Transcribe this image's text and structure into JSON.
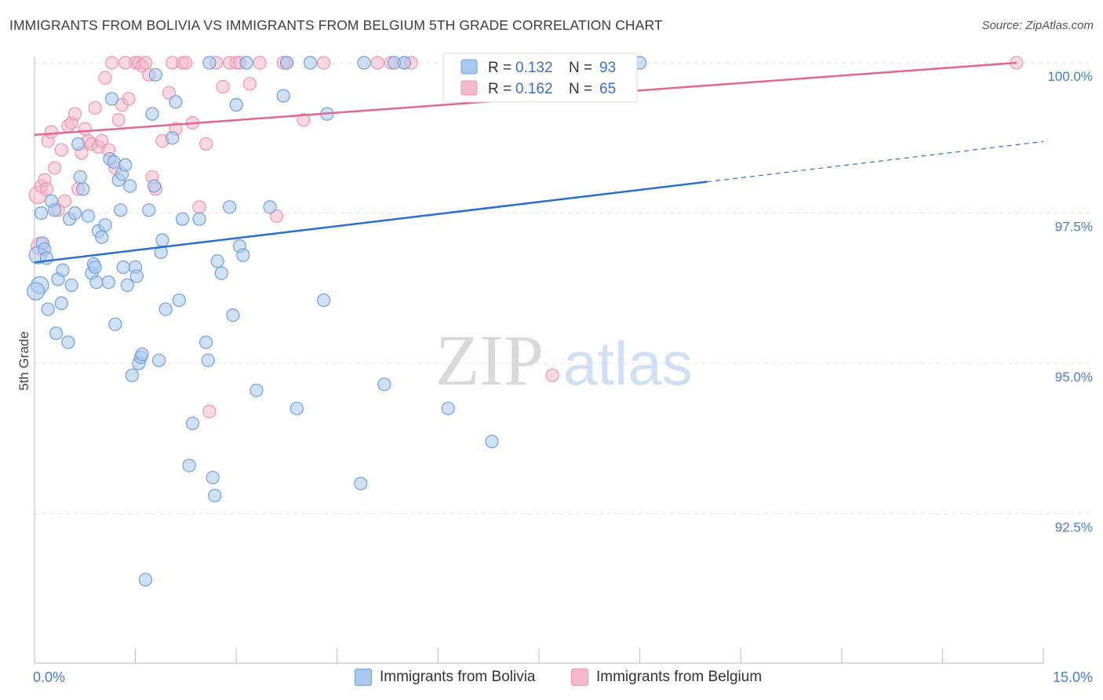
{
  "title": "IMMIGRANTS FROM BOLIVIA VS IMMIGRANTS FROM BELGIUM 5TH GRADE CORRELATION CHART",
  "source": "Source: ZipAtlas.com",
  "watermark": {
    "zip": "ZIP",
    "atlas": "atlas"
  },
  "colors": {
    "bolivia_fill": "#a9c8ee",
    "bolivia_stroke": "#6f9fe0",
    "bolivia_line": "#2a6fcf",
    "belgium_fill": "#f6b9cb",
    "belgium_stroke": "#ee93b0",
    "belgium_line": "#e4678f",
    "tick_text": "#4a7cc9",
    "grid": "#e3e3e3"
  },
  "legend": {
    "rows": [
      {
        "r_label": "R =",
        "r_value": "0.132",
        "n_label": "N =",
        "n_value": "93"
      },
      {
        "r_label": "R =",
        "r_value": "0.162",
        "n_label": "N =",
        "n_value": "65"
      }
    ]
  },
  "chart_data": {
    "type": "scatter",
    "title": "IMMIGRANTS FROM BOLIVIA VS IMMIGRANTS FROM BELGIUM 5TH GRADE CORRELATION CHART",
    "xlabel": "",
    "ylabel": "5th Grade",
    "xlim": [
      0,
      15
    ],
    "ylim": [
      90.5,
      100.3
    ],
    "x_tick_labels": [
      "0.0%",
      "15.0%"
    ],
    "y_ticks": [
      {
        "value": 100.0,
        "label": "100.0%"
      },
      {
        "value": 97.5,
        "label": "97.5%"
      },
      {
        "value": 95.0,
        "label": "95.0%"
      },
      {
        "value": 92.5,
        "label": "92.5%"
      }
    ],
    "series": [
      {
        "name": "Immigrants from Bolivia",
        "r": 0.132,
        "n": 93,
        "trend": {
          "x0": 0.0,
          "y0": 96.68,
          "x1": 10.0,
          "y1": 98.02,
          "dash_to_x": 15.0,
          "dash_to_y": 98.69
        },
        "points": [
          [
            0.05,
            96.8
          ],
          [
            0.08,
            96.3
          ],
          [
            0.1,
            97.5
          ],
          [
            0.12,
            97.0
          ],
          [
            0.15,
            96.9
          ],
          [
            0.18,
            96.75
          ],
          [
            0.2,
            95.9
          ],
          [
            0.25,
            97.7
          ],
          [
            0.3,
            97.55
          ],
          [
            0.32,
            95.5
          ],
          [
            0.35,
            96.4
          ],
          [
            0.4,
            96.0
          ],
          [
            0.42,
            96.55
          ],
          [
            0.5,
            95.35
          ],
          [
            0.52,
            97.4
          ],
          [
            0.55,
            96.3
          ],
          [
            0.6,
            97.5
          ],
          [
            0.65,
            98.65
          ],
          [
            0.68,
            98.1
          ],
          [
            0.72,
            97.9
          ],
          [
            0.8,
            97.45
          ],
          [
            0.85,
            96.5
          ],
          [
            0.88,
            96.65
          ],
          [
            0.9,
            96.6
          ],
          [
            0.92,
            96.35
          ],
          [
            0.95,
            97.2
          ],
          [
            1.0,
            97.1
          ],
          [
            1.05,
            97.3
          ],
          [
            1.1,
            96.35
          ],
          [
            1.12,
            98.4
          ],
          [
            1.15,
            99.4
          ],
          [
            1.18,
            98.35
          ],
          [
            1.2,
            95.65
          ],
          [
            1.25,
            98.05
          ],
          [
            1.28,
            97.55
          ],
          [
            1.3,
            98.15
          ],
          [
            1.32,
            96.6
          ],
          [
            1.35,
            98.3
          ],
          [
            1.38,
            96.3
          ],
          [
            1.42,
            97.95
          ],
          [
            1.45,
            94.8
          ],
          [
            1.5,
            96.6
          ],
          [
            1.52,
            96.45
          ],
          [
            1.55,
            95.0
          ],
          [
            1.58,
            95.1
          ],
          [
            1.6,
            95.15
          ],
          [
            1.65,
            91.4
          ],
          [
            1.7,
            97.55
          ],
          [
            1.75,
            99.15
          ],
          [
            1.78,
            97.95
          ],
          [
            1.8,
            99.8
          ],
          [
            1.85,
            95.05
          ],
          [
            1.88,
            96.85
          ],
          [
            1.9,
            97.05
          ],
          [
            1.95,
            95.9
          ],
          [
            2.05,
            98.75
          ],
          [
            2.1,
            99.35
          ],
          [
            2.15,
            96.05
          ],
          [
            2.2,
            97.4
          ],
          [
            2.35,
            94.0
          ],
          [
            2.3,
            93.3
          ],
          [
            2.45,
            97.4
          ],
          [
            2.55,
            95.35
          ],
          [
            2.58,
            95.05
          ],
          [
            2.6,
            100.0
          ],
          [
            2.65,
            93.1
          ],
          [
            2.68,
            92.8
          ],
          [
            2.72,
            96.7
          ],
          [
            2.78,
            96.5
          ],
          [
            2.9,
            97.6
          ],
          [
            2.95,
            95.8
          ],
          [
            3.0,
            99.3
          ],
          [
            3.05,
            96.95
          ],
          [
            3.1,
            96.8
          ],
          [
            3.15,
            100.0
          ],
          [
            3.3,
            94.55
          ],
          [
            3.5,
            97.6
          ],
          [
            3.7,
            99.45
          ],
          [
            3.75,
            100.0
          ],
          [
            3.9,
            94.25
          ],
          [
            4.1,
            100.0
          ],
          [
            4.35,
            99.15
          ],
          [
            4.3,
            96.05
          ],
          [
            4.85,
            93.0
          ],
          [
            4.9,
            100.0
          ],
          [
            5.2,
            94.65
          ],
          [
            5.35,
            100.0
          ],
          [
            5.5,
            100.0
          ],
          [
            6.15,
            94.25
          ],
          [
            6.8,
            93.7
          ],
          [
            7.0,
            100.0
          ],
          [
            9.0,
            100.0
          ],
          [
            0.02,
            96.2
          ]
        ]
      },
      {
        "name": "Immigrants from Belgium",
        "r": 0.162,
        "n": 65,
        "trend": {
          "x0": 0.0,
          "y0": 98.8,
          "x1": 14.6,
          "y1": 100.0
        },
        "points": [
          [
            0.05,
            97.8
          ],
          [
            0.08,
            96.95
          ],
          [
            0.1,
            97.95
          ],
          [
            0.15,
            98.05
          ],
          [
            0.18,
            97.9
          ],
          [
            0.2,
            98.7
          ],
          [
            0.25,
            98.85
          ],
          [
            0.3,
            98.25
          ],
          [
            0.35,
            97.55
          ],
          [
            0.4,
            98.55
          ],
          [
            0.45,
            97.7
          ],
          [
            0.5,
            98.95
          ],
          [
            0.55,
            99.0
          ],
          [
            0.6,
            99.15
          ],
          [
            0.65,
            97.9
          ],
          [
            0.7,
            98.5
          ],
          [
            0.75,
            98.9
          ],
          [
            0.8,
            98.7
          ],
          [
            0.85,
            98.65
          ],
          [
            0.9,
            99.25
          ],
          [
            0.95,
            98.6
          ],
          [
            1.0,
            98.7
          ],
          [
            1.05,
            99.75
          ],
          [
            1.1,
            98.55
          ],
          [
            1.15,
            100.0
          ],
          [
            1.2,
            98.25
          ],
          [
            1.25,
            99.05
          ],
          [
            1.3,
            99.3
          ],
          [
            1.35,
            100.0
          ],
          [
            1.4,
            99.4
          ],
          [
            1.5,
            100.0
          ],
          [
            1.55,
            100.0
          ],
          [
            1.6,
            99.95
          ],
          [
            1.65,
            100.0
          ],
          [
            1.7,
            99.8
          ],
          [
            1.75,
            98.1
          ],
          [
            1.8,
            97.9
          ],
          [
            1.9,
            98.7
          ],
          [
            2.0,
            99.5
          ],
          [
            2.05,
            100.0
          ],
          [
            2.1,
            98.9
          ],
          [
            2.2,
            100.0
          ],
          [
            2.25,
            100.0
          ],
          [
            2.35,
            99.0
          ],
          [
            2.45,
            97.6
          ],
          [
            2.55,
            98.65
          ],
          [
            2.6,
            94.2
          ],
          [
            2.7,
            100.0
          ],
          [
            2.8,
            99.6
          ],
          [
            2.9,
            100.0
          ],
          [
            3.0,
            100.0
          ],
          [
            3.05,
            100.0
          ],
          [
            3.2,
            99.65
          ],
          [
            3.35,
            100.0
          ],
          [
            3.6,
            97.45
          ],
          [
            3.7,
            100.0
          ],
          [
            3.75,
            100.0
          ],
          [
            4.0,
            99.05
          ],
          [
            4.3,
            100.0
          ],
          [
            5.1,
            100.0
          ],
          [
            5.3,
            100.0
          ],
          [
            5.5,
            100.0
          ],
          [
            5.6,
            100.0
          ],
          [
            7.7,
            94.8
          ],
          [
            14.6,
            100.0
          ]
        ]
      }
    ]
  }
}
